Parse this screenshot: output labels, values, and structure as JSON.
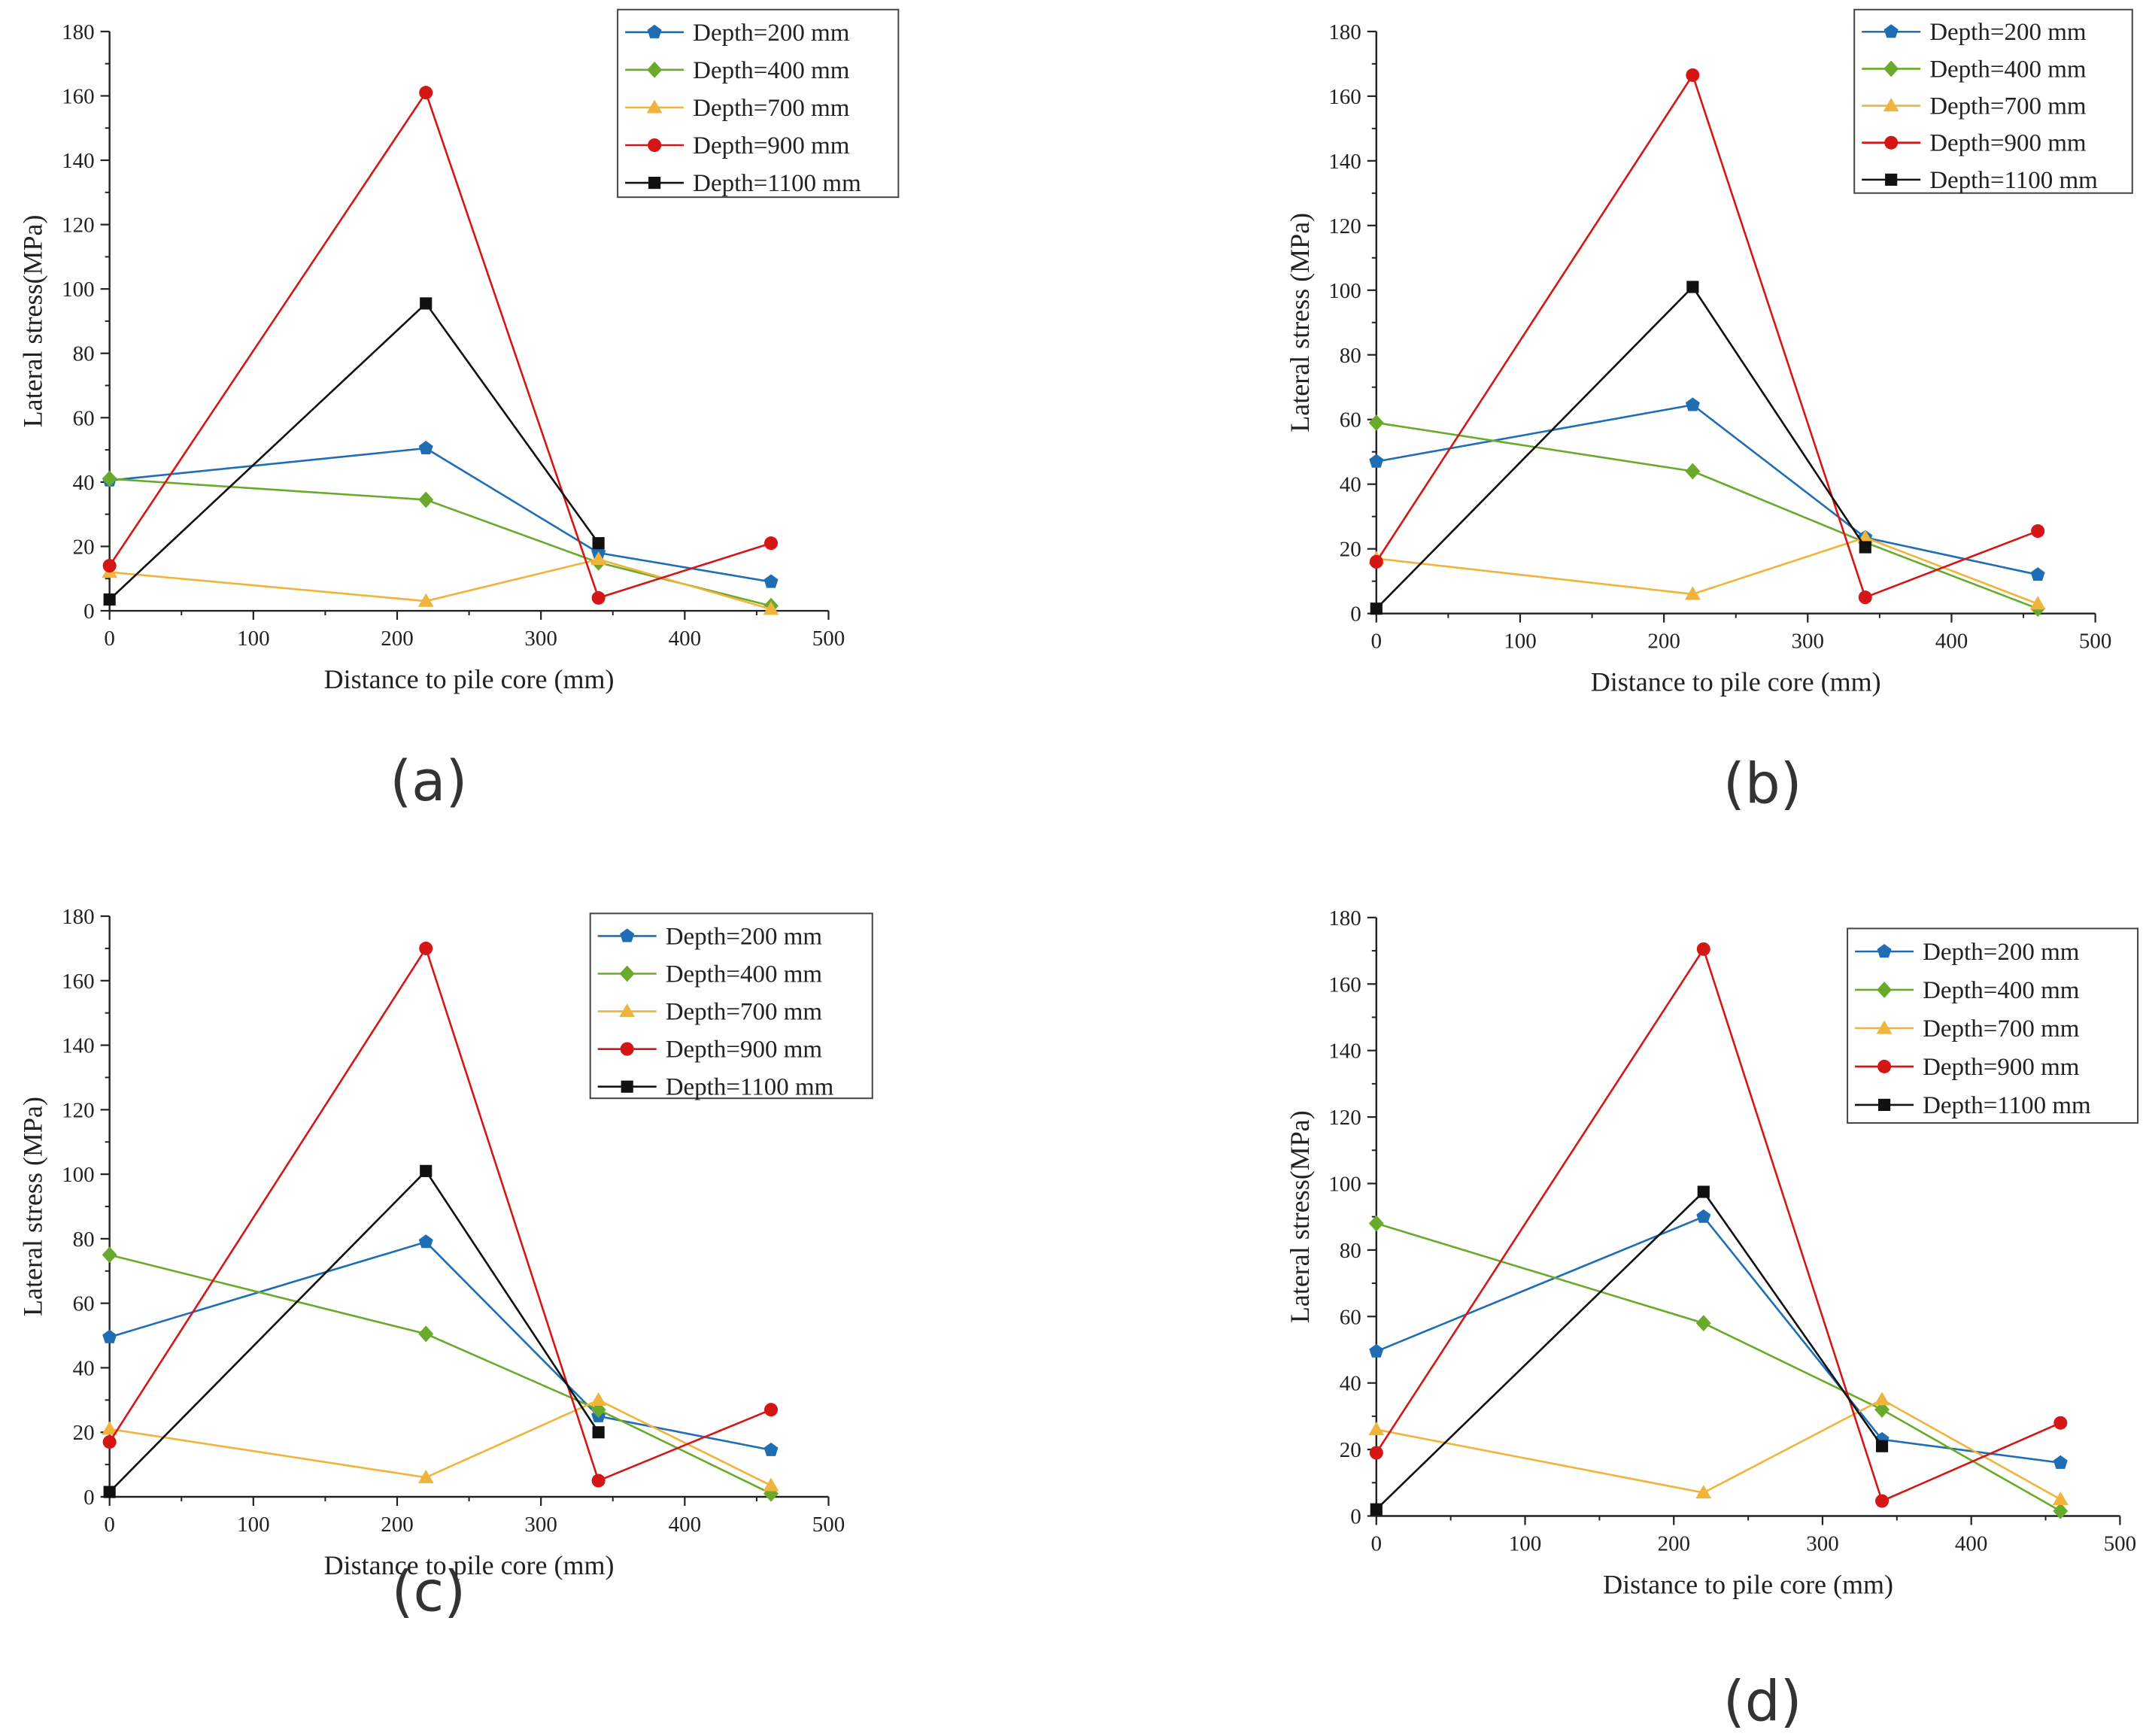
{
  "chart_data": [
    {
      "type": "line",
      "panel_label": "(a)",
      "xlabel": "Distance to pile core (mm)",
      "ylabel": "Lateral stress(MPa)",
      "xlim": [
        0,
        500
      ],
      "ylim": [
        0,
        180
      ],
      "xticks": [
        "0",
        "100",
        "200",
        "300",
        "400",
        "500"
      ],
      "yticks": [
        "0",
        "20",
        "40",
        "60",
        "80",
        "100",
        "120",
        "140",
        "160",
        "180"
      ],
      "legend_position": "top-right",
      "series": [
        {
          "name": "Depth=200 mm",
          "x": [
            0,
            220,
            340,
            460
          ],
          "y": [
            40.5,
            50.5,
            18,
            9
          ]
        },
        {
          "name": "Depth=400 mm",
          "x": [
            0,
            220,
            340,
            460
          ],
          "y": [
            41,
            34.5,
            15,
            1.5
          ]
        },
        {
          "name": "Depth=700 mm",
          "x": [
            0,
            220,
            340,
            460
          ],
          "y": [
            12,
            3,
            16,
            0.5
          ]
        },
        {
          "name": "Depth=900 mm",
          "x": [
            0,
            220,
            340,
            460
          ],
          "y": [
            14,
            161,
            4,
            21
          ]
        },
        {
          "name": "Depth=1100 mm",
          "x": [
            0,
            220,
            340
          ],
          "y": [
            3.5,
            95.5,
            21
          ]
        }
      ]
    },
    {
      "type": "line",
      "panel_label": "(b)",
      "xlabel": "Distance to pile core (mm)",
      "ylabel": "Lateral stress (MPa)",
      "xlim": [
        0,
        500
      ],
      "ylim": [
        0,
        180
      ],
      "xticks": [
        "0",
        "100",
        "200",
        "300",
        "400",
        "500"
      ],
      "yticks": [
        "0",
        "20",
        "40",
        "60",
        "80",
        "100",
        "120",
        "140",
        "160",
        "180"
      ],
      "legend_position": "top-right",
      "series": [
        {
          "name": "Depth=200 mm",
          "x": [
            0,
            220,
            340,
            460
          ],
          "y": [
            47,
            64.5,
            23.5,
            12
          ]
        },
        {
          "name": "Depth=400 mm",
          "x": [
            0,
            220,
            340,
            460
          ],
          "y": [
            59,
            44,
            22,
            1.5
          ]
        },
        {
          "name": "Depth=700 mm",
          "x": [
            0,
            220,
            340,
            460
          ],
          "y": [
            17,
            6,
            23.5,
            3
          ]
        },
        {
          "name": "Depth=900 mm",
          "x": [
            0,
            220,
            340,
            460
          ],
          "y": [
            16,
            166.5,
            5,
            25.5
          ]
        },
        {
          "name": "Depth=1100 mm",
          "x": [
            0,
            220,
            340
          ],
          "y": [
            1.5,
            101,
            20.5
          ]
        }
      ]
    },
    {
      "type": "line",
      "panel_label": "(c)",
      "xlabel": "Distance to pile core (mm)",
      "ylabel": "Lateral stress (MPa)",
      "xlim": [
        0,
        500
      ],
      "ylim": [
        0,
        180
      ],
      "xticks": [
        "0",
        "100",
        "200",
        "300",
        "400",
        "500"
      ],
      "yticks": [
        "0",
        "20",
        "40",
        "60",
        "80",
        "100",
        "120",
        "140",
        "160",
        "180"
      ],
      "legend_position": "top-right",
      "series": [
        {
          "name": "Depth=200 mm",
          "x": [
            0,
            220,
            340,
            460
          ],
          "y": [
            49.5,
            79,
            25,
            14.5
          ]
        },
        {
          "name": "Depth=400 mm",
          "x": [
            0,
            220,
            340,
            460
          ],
          "y": [
            75,
            50.5,
            27,
            1
          ]
        },
        {
          "name": "Depth=700 mm",
          "x": [
            0,
            220,
            340,
            460
          ],
          "y": [
            21,
            6,
            30,
            3.5
          ]
        },
        {
          "name": "Depth=900 mm",
          "x": [
            0,
            220,
            340,
            460
          ],
          "y": [
            17,
            170,
            5,
            27
          ]
        },
        {
          "name": "Depth=1100 mm",
          "x": [
            0,
            220,
            340
          ],
          "y": [
            1.5,
            101,
            20
          ]
        }
      ]
    },
    {
      "type": "line",
      "panel_label": "(d)",
      "xlabel": "Distance to pile core (mm)",
      "ylabel": "Lateral stress(MPa)",
      "xlim": [
        0,
        500
      ],
      "ylim": [
        0,
        180
      ],
      "xticks": [
        "0",
        "100",
        "200",
        "300",
        "400",
        "500"
      ],
      "yticks": [
        "0",
        "20",
        "40",
        "60",
        "80",
        "100",
        "120",
        "140",
        "160",
        "180"
      ],
      "legend_position": "top-right",
      "series": [
        {
          "name": "Depth=200 mm",
          "x": [
            0,
            220,
            340,
            460
          ],
          "y": [
            49.5,
            90,
            23,
            16
          ]
        },
        {
          "name": "Depth=400 mm",
          "x": [
            0,
            220,
            340,
            460
          ],
          "y": [
            88,
            58,
            32,
            1.5
          ]
        },
        {
          "name": "Depth=700 mm",
          "x": [
            0,
            220,
            340,
            460
          ],
          "y": [
            26,
            7,
            35,
            5
          ]
        },
        {
          "name": "Depth=900 mm",
          "x": [
            0,
            220,
            340,
            460
          ],
          "y": [
            19,
            170.5,
            4.5,
            28
          ]
        },
        {
          "name": "Depth=1100 mm",
          "x": [
            0,
            220,
            340
          ],
          "y": [
            2,
            97.5,
            21
          ]
        }
      ]
    }
  ],
  "style": {
    "series_colors": [
      "#1f6eb5",
      "#6aaa2a",
      "#f0b43c",
      "#d51616",
      "#111111"
    ],
    "series_markers": [
      "pentagon",
      "diamond",
      "triangle",
      "circle",
      "square"
    ]
  }
}
